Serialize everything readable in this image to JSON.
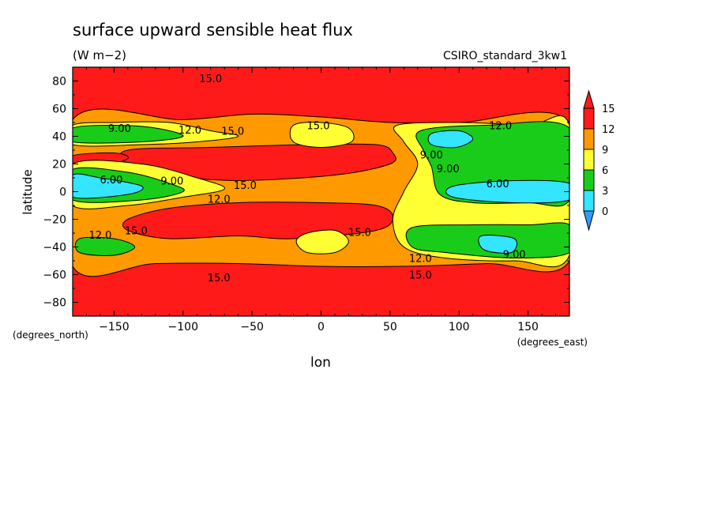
{
  "chart_data": {
    "type": "heatmap",
    "title": "surface upward sensible heat flux",
    "subtitle": "(W m−2)",
    "dataset_label": "CSIRO_standard_3kw1",
    "xlabel": "lon",
    "ylabel": "latitude",
    "x_units": "(degrees_east)",
    "y_units": "(degrees_north)",
    "xlim": [
      -180,
      180
    ],
    "ylim": [
      -90,
      90
    ],
    "x_ticks": [
      -150,
      -100,
      -50,
      0,
      50,
      100,
      150
    ],
    "y_ticks": [
      -80,
      -60,
      -40,
      -20,
      0,
      20,
      40,
      60,
      80
    ],
    "colorbar": {
      "levels": [
        0,
        3,
        6,
        9,
        12,
        15
      ],
      "labels": [
        "0",
        "3",
        "6",
        "9",
        "12",
        "15"
      ],
      "colors": [
        "#3399ff",
        "#33e5ff",
        "#19cc19",
        "#ffff33",
        "#ff9900",
        "#ff1a1a"
      ],
      "extend": "both"
    },
    "contour_labels": [
      {
        "lon": -80,
        "lat": 82,
        "text": "15.0"
      },
      {
        "lon": -146,
        "lat": 46,
        "text": "9.00"
      },
      {
        "lon": -95,
        "lat": 45,
        "text": "12.0"
      },
      {
        "lon": -64,
        "lat": 44,
        "text": "15.0"
      },
      {
        "lon": -2,
        "lat": 48,
        "text": "15.0"
      },
      {
        "lon": 130,
        "lat": 48,
        "text": "12.0"
      },
      {
        "lon": -152,
        "lat": 9,
        "text": "6.00"
      },
      {
        "lon": -108,
        "lat": 8,
        "text": "9.00"
      },
      {
        "lon": -55,
        "lat": 5,
        "text": "15.0"
      },
      {
        "lon": -74,
        "lat": -5,
        "text": "12.0"
      },
      {
        "lon": 80,
        "lat": 27,
        "text": "9.00"
      },
      {
        "lon": 92,
        "lat": 17,
        "text": "9.00"
      },
      {
        "lon": 128,
        "lat": 6,
        "text": "6.00"
      },
      {
        "lon": -160,
        "lat": -31,
        "text": "12.0"
      },
      {
        "lon": -134,
        "lat": -28,
        "text": "15.0"
      },
      {
        "lon": 28,
        "lat": -29,
        "text": "15.0"
      },
      {
        "lon": 72,
        "lat": -48,
        "text": "12.0"
      },
      {
        "lon": 140,
        "lat": -45,
        "text": "9.00"
      },
      {
        "lon": 72,
        "lat": -60,
        "text": "15.0"
      },
      {
        "lon": -74,
        "lat": -62,
        "text": "15.0"
      }
    ],
    "regions": [
      {
        "level": 12,
        "pts": [
          [
            -180,
            52
          ],
          [
            -100,
            52
          ],
          [
            -50,
            56
          ],
          [
            0,
            54
          ],
          [
            50,
            50
          ],
          [
            100,
            50
          ],
          [
            180,
            50
          ],
          [
            180,
            -50
          ],
          [
            120,
            -52
          ],
          [
            60,
            -54
          ],
          [
            0,
            -54
          ],
          [
            -60,
            -52
          ],
          [
            -120,
            -52
          ],
          [
            -180,
            -54
          ]
        ]
      },
      {
        "level": 15,
        "pts": [
          [
            -140,
            30
          ],
          [
            -80,
            32
          ],
          [
            -10,
            34
          ],
          [
            40,
            34
          ],
          [
            52,
            28
          ],
          [
            50,
            20
          ],
          [
            10,
            12
          ],
          [
            -60,
            8
          ],
          [
            -110,
            12
          ],
          [
            -140,
            20
          ]
        ]
      },
      {
        "level": 15,
        "pts": [
          [
            -140,
            -20
          ],
          [
            -110,
            -12
          ],
          [
            -60,
            -8
          ],
          [
            0,
            -8
          ],
          [
            40,
            -10
          ],
          [
            52,
            -18
          ],
          [
            40,
            -28
          ],
          [
            -20,
            -34
          ],
          [
            -60,
            -32
          ],
          [
            -110,
            -34
          ],
          [
            -140,
            -28
          ]
        ]
      },
      {
        "level": 15,
        "pts": [
          [
            -180,
            26
          ],
          [
            -150,
            28
          ],
          [
            -140,
            24
          ],
          [
            -160,
            18
          ],
          [
            -180,
            18
          ]
        ]
      },
      {
        "level": 9,
        "pts": [
          [
            -180,
            48
          ],
          [
            -150,
            50
          ],
          [
            -110,
            50
          ],
          [
            -80,
            44
          ],
          [
            -60,
            40
          ],
          [
            -90,
            36
          ],
          [
            -130,
            34
          ],
          [
            -180,
            34
          ]
        ]
      },
      {
        "level": 6,
        "pts": [
          [
            -180,
            46
          ],
          [
            -150,
            48
          ],
          [
            -120,
            46
          ],
          [
            -100,
            40
          ],
          [
            -130,
            36
          ],
          [
            -180,
            36
          ]
        ]
      },
      {
        "level": 9,
        "pts": [
          [
            -180,
            20
          ],
          [
            -130,
            20
          ],
          [
            -90,
            10
          ],
          [
            -70,
            2
          ],
          [
            -100,
            -4
          ],
          [
            -140,
            -10
          ],
          [
            -180,
            -10
          ]
        ]
      },
      {
        "level": 6,
        "pts": [
          [
            -180,
            16
          ],
          [
            -140,
            14
          ],
          [
            -110,
            6
          ],
          [
            -100,
            0
          ],
          [
            -130,
            -6
          ],
          [
            -180,
            -6
          ]
        ]
      },
      {
        "level": 3,
        "pts": [
          [
            -180,
            12
          ],
          [
            -160,
            10
          ],
          [
            -130,
            4
          ],
          [
            -140,
            -2
          ],
          [
            -180,
            -4
          ]
        ]
      },
      {
        "level": 9,
        "pts": [
          [
            -20,
            48
          ],
          [
            0,
            50
          ],
          [
            20,
            46
          ],
          [
            22,
            36
          ],
          [
            0,
            32
          ],
          [
            -20,
            36
          ]
        ]
      },
      {
        "level": 9,
        "pts": [
          [
            -10,
            -30
          ],
          [
            10,
            -28
          ],
          [
            20,
            -36
          ],
          [
            10,
            -44
          ],
          [
            -10,
            -44
          ],
          [
            -18,
            -36
          ]
        ]
      },
      {
        "level": 9,
        "pts": [
          [
            55,
            48
          ],
          [
            100,
            50
          ],
          [
            150,
            48
          ],
          [
            180,
            48
          ],
          [
            180,
            -46
          ],
          [
            140,
            -50
          ],
          [
            90,
            -48
          ],
          [
            60,
            -40
          ],
          [
            52,
            -20
          ],
          [
            60,
            0
          ],
          [
            70,
            20
          ],
          [
            60,
            36
          ]
        ]
      },
      {
        "level": 6,
        "pts": [
          [
            72,
            44
          ],
          [
            120,
            48
          ],
          [
            180,
            46
          ],
          [
            180,
            -6
          ],
          [
            150,
            -8
          ],
          [
            110,
            -8
          ],
          [
            86,
            -2
          ],
          [
            80,
            18
          ],
          [
            74,
            30
          ]
        ]
      },
      {
        "level": 6,
        "pts": [
          [
            66,
            -26
          ],
          [
            110,
            -24
          ],
          [
            150,
            -24
          ],
          [
            180,
            -24
          ],
          [
            180,
            -44
          ],
          [
            140,
            -48
          ],
          [
            90,
            -44
          ],
          [
            66,
            -40
          ]
        ]
      },
      {
        "level": 3,
        "pts": [
          [
            80,
            42
          ],
          [
            100,
            44
          ],
          [
            110,
            38
          ],
          [
            98,
            32
          ],
          [
            80,
            34
          ]
        ]
      },
      {
        "level": 3,
        "pts": [
          [
            96,
            4
          ],
          [
            140,
            8
          ],
          [
            180,
            6
          ],
          [
            180,
            -6
          ],
          [
            140,
            -8
          ],
          [
            96,
            -4
          ]
        ]
      },
      {
        "level": 3,
        "pts": [
          [
            116,
            -32
          ],
          [
            140,
            -34
          ],
          [
            138,
            -44
          ],
          [
            118,
            -42
          ]
        ]
      },
      {
        "level": 6,
        "pts": [
          [
            -175,
            -34
          ],
          [
            -150,
            -34
          ],
          [
            -135,
            -40
          ],
          [
            -150,
            -46
          ],
          [
            -175,
            -44
          ]
        ]
      }
    ]
  }
}
